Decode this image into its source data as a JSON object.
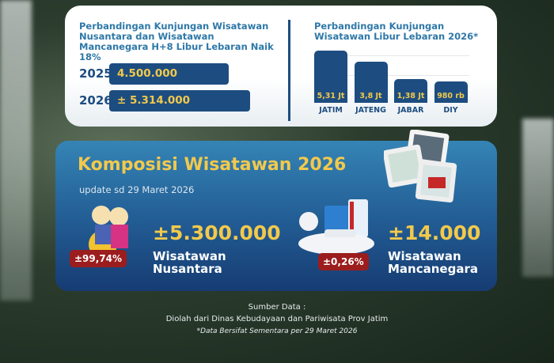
{
  "top_left": {
    "title": "Perbandingan Kunjungan Wisatawan Nusantara dan Wisatawan Mancanegara H+8  Libur Lebaran Naik 18%",
    "rows": [
      {
        "year": "2025",
        "label": "4.500.000",
        "value": 4500000
      },
      {
        "year": "2026",
        "label": "± 5.314.000",
        "value": 5314000
      }
    ]
  },
  "top_right": {
    "title": "Perbandingan Kunjungan Wisatawan Libur Lebaran 2026*"
  },
  "chart_data": [
    {
      "type": "bar",
      "orientation": "horizontal",
      "categories": [
        "2025",
        "2026"
      ],
      "values": [
        4500000,
        5314000
      ],
      "data_labels": [
        "4.500.000",
        "± 5.314.000"
      ]
    },
    {
      "type": "bar",
      "categories": [
        "JATIM",
        "JATENG",
        "JABAR",
        "DIY"
      ],
      "values": [
        5.31,
        3.8,
        1.38,
        0.98
      ],
      "unit": "juta",
      "data_labels": [
        "5,31 Jt",
        "3,8 Jt",
        "1,38 Jt",
        "980 rb"
      ],
      "grid": true
    }
  ],
  "komposisi": {
    "title": "Komposisi Wisatawan 2026",
    "subtitle": "update sd 29 Maret 2026",
    "nusantara": {
      "value": "±5.300.000",
      "label1": "Wisatawan",
      "label2": "Nusantara",
      "pct": "±99,74%"
    },
    "mancanegara": {
      "value": "±14.000",
      "label1": "Wisatawan",
      "label2": "Mancanegara",
      "pct": "±0,26%"
    }
  },
  "footer": {
    "source_title": "Sumber Data :",
    "source": "Diolah dari Dinas Kebudayaan dan Pariwisata Prov Jatim",
    "note": "*Data Bersifat Sementara per 29 Maret 2026"
  },
  "colors": {
    "navy": "#1d4d80",
    "yellow": "#f2c94c",
    "badge": "#9b1d1d",
    "title_blue": "#2e78a8"
  }
}
